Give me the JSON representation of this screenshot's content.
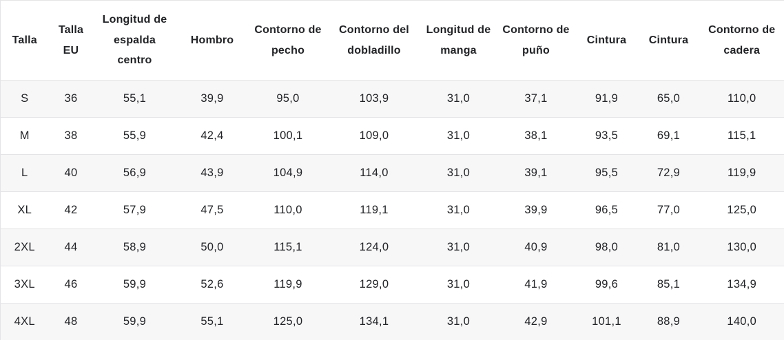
{
  "size_chart": {
    "columns": [
      {
        "id": "talla",
        "label": "Talla"
      },
      {
        "id": "talla-eu",
        "label": "Talla EU"
      },
      {
        "id": "longitud-espalda",
        "label": "Longitud de espalda centro"
      },
      {
        "id": "hombro",
        "label": "Hombro"
      },
      {
        "id": "contorno-pecho",
        "label": "Contorno de pecho"
      },
      {
        "id": "contorno-dobladillo",
        "label": "Contorno del dobladillo"
      },
      {
        "id": "longitud-manga",
        "label": "Longitud de manga"
      },
      {
        "id": "contorno-puno",
        "label": "Contorno de puño"
      },
      {
        "id": "cintura-1",
        "label": "Cintura"
      },
      {
        "id": "cintura-2",
        "label": "Cintura"
      },
      {
        "id": "contorno-cadera",
        "label": "Contorno de cadera"
      }
    ],
    "rows": [
      {
        "size": "S",
        "values": [
          "36",
          "55,1",
          "39,9",
          "95,0",
          "103,9",
          "31,0",
          "37,1",
          "91,9",
          "65,0",
          "110,0"
        ]
      },
      {
        "size": "M",
        "values": [
          "38",
          "55,9",
          "42,4",
          "100,1",
          "109,0",
          "31,0",
          "38,1",
          "93,5",
          "69,1",
          "115,1"
        ]
      },
      {
        "size": "L",
        "values": [
          "40",
          "56,9",
          "43,9",
          "104,9",
          "114,0",
          "31,0",
          "39,1",
          "95,5",
          "72,9",
          "119,9"
        ]
      },
      {
        "size": "XL",
        "values": [
          "42",
          "57,9",
          "47,5",
          "110,0",
          "119,1",
          "31,0",
          "39,9",
          "96,5",
          "77,0",
          "125,0"
        ]
      },
      {
        "size": "2XL",
        "values": [
          "44",
          "58,9",
          "50,0",
          "115,1",
          "124,0",
          "31,0",
          "40,9",
          "98,0",
          "81,0",
          "130,0"
        ]
      },
      {
        "size": "3XL",
        "values": [
          "46",
          "59,9",
          "52,6",
          "119,9",
          "129,0",
          "31,0",
          "41,9",
          "99,6",
          "85,1",
          "134,9"
        ]
      },
      {
        "size": "4XL",
        "values": [
          "48",
          "59,9",
          "55,1",
          "125,0",
          "134,1",
          "31,0",
          "42,9",
          "101,1",
          "88,9",
          "140,0"
        ]
      }
    ],
    "colors": {
      "stripe_row_bg": "#f7f7f8",
      "plain_row_bg": "#ffffff",
      "border": "#e4e4e6",
      "text": "#222326"
    }
  }
}
